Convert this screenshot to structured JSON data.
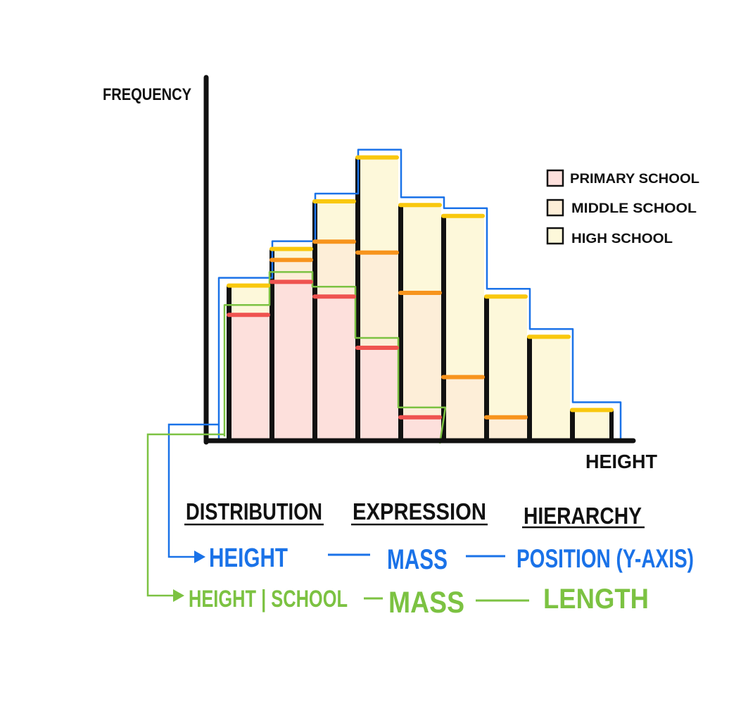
{
  "chart_data": {
    "type": "bar",
    "title": "",
    "xlabel": "HEIGHT",
    "ylabel": "FREQUENCY",
    "categories": [
      "",
      "",
      "",
      "",
      "",
      "",
      "",
      "",
      "",
      ""
    ],
    "series": [
      {
        "name": "PRIMARY SCHOOL",
        "values": [
          3.4,
          4.3,
          3.9,
          2.5,
          0.6,
          0,
          0,
          0,
          0,
          0
        ]
      },
      {
        "name": "MIDDLE SCHOOL",
        "values": [
          0,
          0.6,
          1.5,
          2.6,
          3.4,
          1.7,
          0.6,
          0,
          0,
          0
        ]
      },
      {
        "name": "HIGH SCHOOL",
        "values": [
          0.8,
          0.3,
          1.1,
          2.6,
          2.4,
          4.4,
          3.3,
          2.8,
          0.8,
          0
        ]
      }
    ],
    "ylim": [
      0,
      8
    ],
    "grid": false,
    "legend": "top-right",
    "totals_outline_color": "#1a72e8",
    "conditional_outline_color": "#7cc242"
  },
  "legend": {
    "items": [
      {
        "label": "PRIMARY SCHOOL",
        "color": "#fde0dc"
      },
      {
        "label": "MIDDLE SCHOOL",
        "color": "#fdeed8"
      },
      {
        "label": "HIGH SCHOOL",
        "color": "#fdf8da"
      }
    ]
  },
  "mapping": {
    "headers": {
      "distribution": "DISTRIBUTION",
      "expression": "EXPRESSION",
      "hierarchy": "HIERARCHY"
    },
    "rows": [
      {
        "distribution": "HEIGHT",
        "expression": "MASS",
        "hierarchy": "POSITION (Y-AXIS)",
        "color": "#1a72e8"
      },
      {
        "distribution": "HEIGHT | SCHOOL",
        "expression": "MASS",
        "hierarchy": "LENGTH",
        "color": "#7cc242"
      }
    ]
  },
  "colors": {
    "axis": "#111111",
    "primary_fill": "#fde0dc",
    "middle_fill": "#fdeed8",
    "high_fill": "#fdf8da",
    "primary_cap": "#ef5350",
    "middle_cap": "#f7941d",
    "high_cap": "#f9c80e"
  }
}
